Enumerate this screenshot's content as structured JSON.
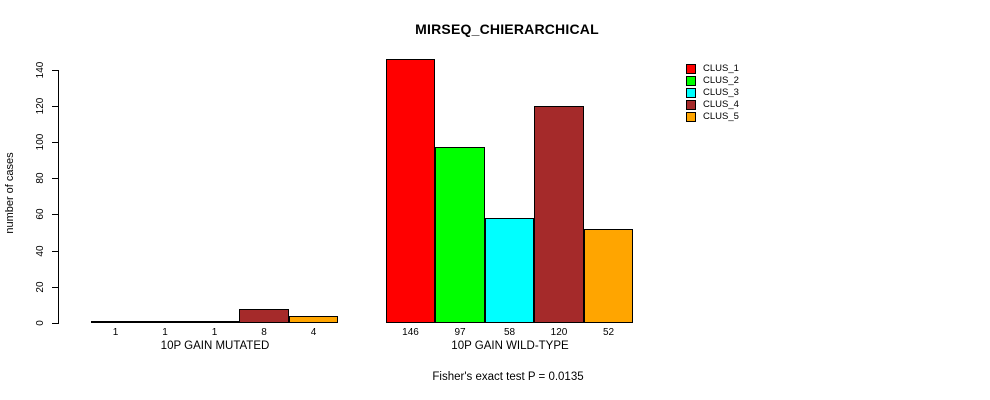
{
  "chart_data": {
    "type": "bar",
    "title": "MIRSEQ_CHIERARCHICAL",
    "ylabel": "number of cases",
    "xlabel": "",
    "categories": [
      "10P GAIN MUTATED",
      "10P GAIN WILD-TYPE"
    ],
    "series": [
      {
        "name": "CLUS_1",
        "color": "#FF0000",
        "values": [
          1,
          146
        ]
      },
      {
        "name": "CLUS_2",
        "color": "#00FF00",
        "values": [
          1,
          97
        ]
      },
      {
        "name": "CLUS_3",
        "color": "#00FFFF",
        "values": [
          1,
          58
        ]
      },
      {
        "name": "CLUS_4",
        "color": "#A52A2A",
        "values": [
          8,
          120
        ]
      },
      {
        "name": "CLUS_5",
        "color": "#FFA500",
        "values": [
          4,
          52
        ]
      }
    ],
    "ylim": [
      0,
      146
    ],
    "yticks": [
      0,
      20,
      40,
      60,
      80,
      100,
      120,
      140
    ],
    "grid": false,
    "bar_borders": "#000000",
    "bar_value_labels_shown": true,
    "legend_position": "top-right",
    "annotation": "Fisher's exact test P = 0.0135"
  }
}
